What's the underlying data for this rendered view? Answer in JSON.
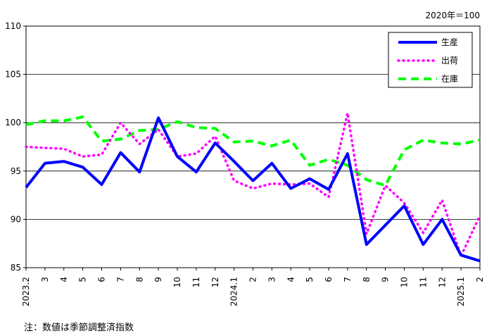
{
  "chart_data": {
    "type": "line",
    "base_note": "2020年＝100",
    "footnote": "注：数値は季節調整済指数",
    "ylim": [
      85,
      110
    ],
    "yticks": [
      85,
      90,
      95,
      100,
      105,
      110
    ],
    "grid": true,
    "legend_position": "top-right",
    "x": [
      "2023.2",
      "3",
      "4",
      "5",
      "6",
      "7",
      "8",
      "9",
      "10",
      "11",
      "12",
      "2024.1",
      "2",
      "3",
      "4",
      "5",
      "6",
      "7",
      "8",
      "9",
      "10",
      "11",
      "12",
      "2025.1",
      "2"
    ],
    "series": [
      {
        "name": "生産",
        "color": "#0000ff",
        "style": "solid",
        "values": [
          93.3,
          95.8,
          96.0,
          95.4,
          93.6,
          96.9,
          94.9,
          100.5,
          96.5,
          94.9,
          97.9,
          96.0,
          94.0,
          95.8,
          93.2,
          94.2,
          93.1,
          96.8,
          87.4,
          89.4,
          91.4,
          87.4,
          90.0,
          86.3,
          85.7
        ]
      },
      {
        "name": "出荷",
        "color": "#ff00ff",
        "style": "dotted",
        "values": [
          97.5,
          97.4,
          97.3,
          96.5,
          96.7,
          100.0,
          97.8,
          99.3,
          96.5,
          96.8,
          98.6,
          94.0,
          93.2,
          93.7,
          93.6,
          93.7,
          92.3,
          101.0,
          88.5,
          93.5,
          91.7,
          88.6,
          92.0,
          86.2,
          90.4
        ]
      },
      {
        "name": "在庫",
        "color": "#00ff00",
        "style": "dashed",
        "values": [
          99.8,
          100.2,
          100.2,
          100.6,
          98.1,
          98.3,
          99.2,
          99.3,
          100.1,
          99.5,
          99.4,
          98.0,
          98.1,
          97.6,
          98.2,
          95.6,
          96.2,
          95.6,
          94.1,
          93.5,
          97.2,
          98.2,
          97.9,
          97.8,
          98.2
        ]
      }
    ]
  }
}
